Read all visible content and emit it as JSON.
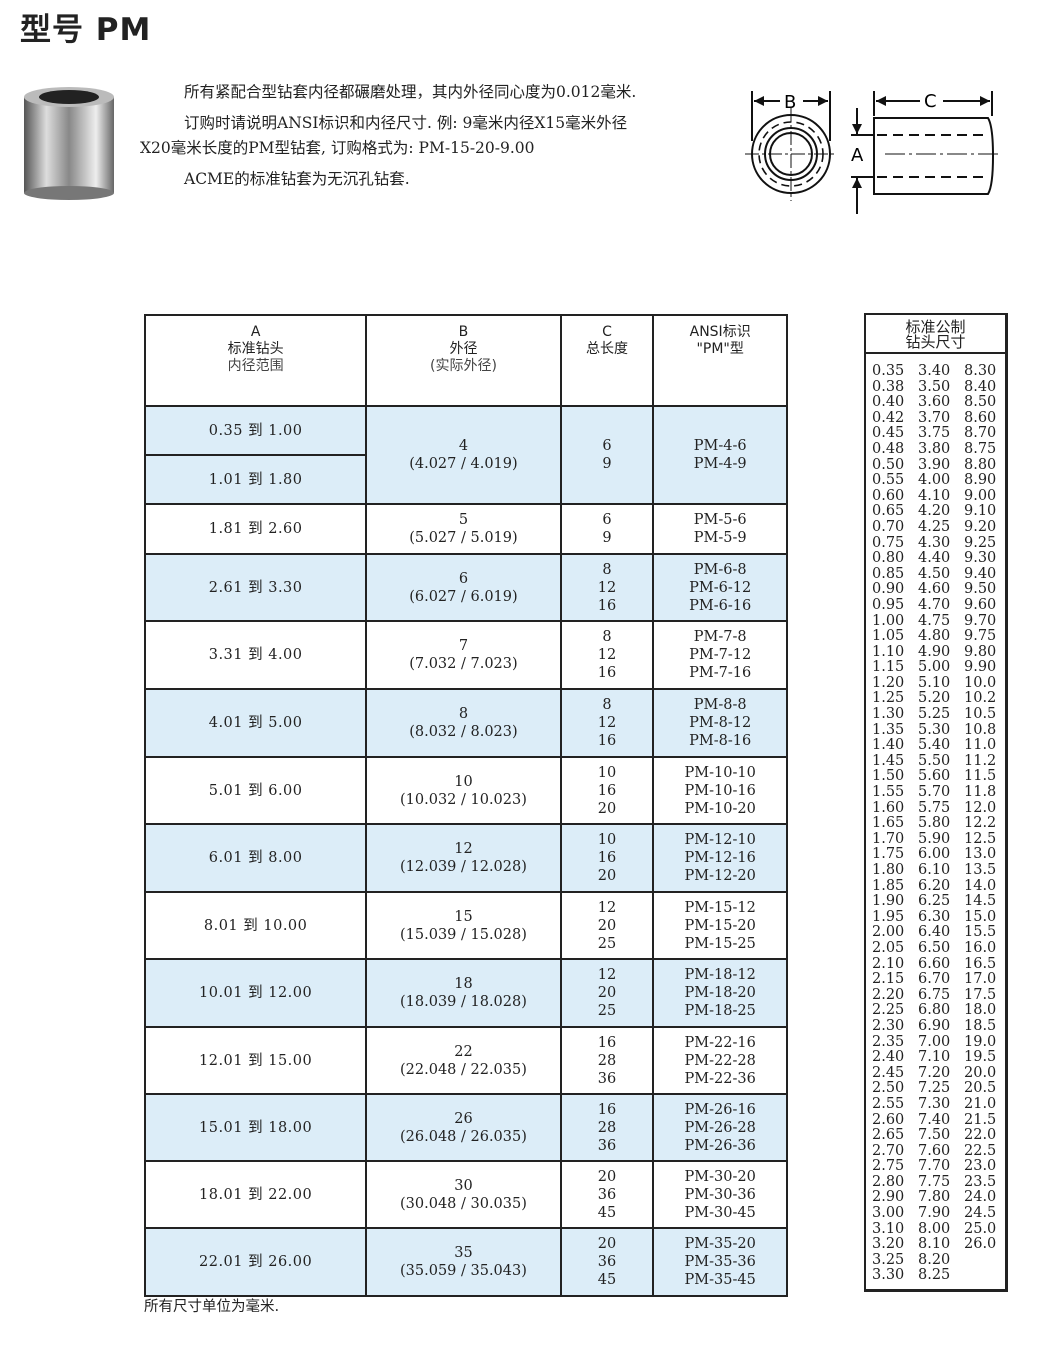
{
  "title": "型号 PM",
  "intro": {
    "p1": "所有紧配合型钻套内径都碾磨处理，其内外径同心度为0.012毫米.",
    "p2": "订购时请说明ANSI标识和内径尺寸. 例: 9毫米内径X15毫米外径X20毫米长度的PM型钻套, 订购格式为: PM-15-20-9.00",
    "p3": "ACME的标准钻套为无沉孔钻套."
  },
  "diagram": {
    "label_b": "B",
    "label_c": "C",
    "label_a": "A"
  },
  "table": {
    "headers": [
      {
        "l1": "A",
        "l2": "标准钻头",
        "l3": "内径范围"
      },
      {
        "l1": "B",
        "l2": "外径",
        "l3": "(实际外径)"
      },
      {
        "l1": "C",
        "l2": "总长度",
        "l3": ""
      },
      {
        "l1": "ANSI标识",
        "l2": "\"PM\"型",
        "l3": ""
      }
    ],
    "rows": [
      {
        "a": [
          "0.35 到 1.00",
          "1.01 到 1.80"
        ],
        "b": "4",
        "b_actual": "(4.027 / 4.019)",
        "c": [
          "6",
          "9"
        ],
        "ansi": [
          "PM-4-6",
          "PM-4-9"
        ]
      },
      {
        "a": [
          "1.81 到 2.60"
        ],
        "b": "5",
        "b_actual": "(5.027 / 5.019)",
        "c": [
          "6",
          "9"
        ],
        "ansi": [
          "PM-5-6",
          "PM-5-9"
        ]
      },
      {
        "a": [
          "2.61 到 3.30"
        ],
        "b": "6",
        "b_actual": "(6.027 / 6.019)",
        "c": [
          "8",
          "12",
          "16"
        ],
        "ansi": [
          "PM-6-8",
          "PM-6-12",
          "PM-6-16"
        ]
      },
      {
        "a": [
          "3.31 到 4.00"
        ],
        "b": "7",
        "b_actual": "(7.032 / 7.023)",
        "c": [
          "8",
          "12",
          "16"
        ],
        "ansi": [
          "PM-7-8",
          "PM-7-12",
          "PM-7-16"
        ]
      },
      {
        "a": [
          "4.01 到 5.00"
        ],
        "b": "8",
        "b_actual": "(8.032 / 8.023)",
        "c": [
          "8",
          "12",
          "16"
        ],
        "ansi": [
          "PM-8-8",
          "PM-8-12",
          "PM-8-16"
        ]
      },
      {
        "a": [
          "5.01 到 6.00"
        ],
        "b": "10",
        "b_actual": "(10.032 / 10.023)",
        "c": [
          "10",
          "16",
          "20"
        ],
        "ansi": [
          "PM-10-10",
          "PM-10-16",
          "PM-10-20"
        ]
      },
      {
        "a": [
          "6.01 到 8.00"
        ],
        "b": "12",
        "b_actual": "(12.039 / 12.028)",
        "c": [
          "10",
          "16",
          "20"
        ],
        "ansi": [
          "PM-12-10",
          "PM-12-16",
          "PM-12-20"
        ]
      },
      {
        "a": [
          "8.01 到 10.00"
        ],
        "b": "15",
        "b_actual": "(15.039 / 15.028)",
        "c": [
          "12",
          "20",
          "25"
        ],
        "ansi": [
          "PM-15-12",
          "PM-15-20",
          "PM-15-25"
        ]
      },
      {
        "a": [
          "10.01 到 12.00"
        ],
        "b": "18",
        "b_actual": "(18.039 / 18.028)",
        "c": [
          "12",
          "20",
          "25"
        ],
        "ansi": [
          "PM-18-12",
          "PM-18-20",
          "PM-18-25"
        ]
      },
      {
        "a": [
          "12.01 到 15.00"
        ],
        "b": "22",
        "b_actual": "(22.048 / 22.035)",
        "c": [
          "16",
          "28",
          "36"
        ],
        "ansi": [
          "PM-22-16",
          "PM-22-28",
          "PM-22-36"
        ]
      },
      {
        "a": [
          "15.01 到 18.00"
        ],
        "b": "26",
        "b_actual": "(26.048 / 26.035)",
        "c": [
          "16",
          "28",
          "36"
        ],
        "ansi": [
          "PM-26-16",
          "PM-26-28",
          "PM-26-36"
        ]
      },
      {
        "a": [
          "18.01 到 22.00"
        ],
        "b": "30",
        "b_actual": "(30.048 / 30.035)",
        "c": [
          "20",
          "36",
          "45"
        ],
        "ansi": [
          "PM-30-20",
          "PM-30-36",
          "PM-30-45"
        ]
      },
      {
        "a": [
          "22.01 到 26.00"
        ],
        "b": "35",
        "b_actual": "(35.059 / 35.043)",
        "c": [
          "20",
          "36",
          "45"
        ],
        "ansi": [
          "PM-35-20",
          "PM-35-36",
          "PM-35-45"
        ]
      }
    ],
    "row_color": "#dcedf8"
  },
  "footnote": "所有尺寸单位为毫米.",
  "drill": {
    "title1": "标准公制",
    "title2": "钻头尺寸",
    "columns": [
      [
        "0.35",
        "0.38",
        "0.40",
        "0.42",
        "0.45",
        "0.48",
        "0.50",
        "0.55",
        "0.60",
        "0.65",
        "0.70",
        "0.75",
        "0.80",
        "0.85",
        "0.90",
        "0.95",
        "1.00",
        "1.05",
        "1.10",
        "1.15",
        "1.20",
        "1.25",
        "1.30",
        "1.35",
        "1.40",
        "1.45",
        "1.50",
        "1.55",
        "1.60",
        "1.65",
        "1.70",
        "1.75",
        "1.80",
        "1.85",
        "1.90",
        "1.95",
        "2.00",
        "2.05",
        "2.10",
        "2.15",
        "2.20",
        "2.25",
        "2.30",
        "2.35",
        "2.40",
        "2.45",
        "2.50",
        "2.55",
        "2.60",
        "2.65",
        "2.70",
        "2.75",
        "2.80",
        "2.90",
        "3.00",
        "3.10",
        "3.20",
        "3.25",
        "3.30"
      ],
      [
        "3.40",
        "3.50",
        "3.60",
        "3.70",
        "3.75",
        "3.80",
        "3.90",
        "4.00",
        "4.10",
        "4.20",
        "4.25",
        "4.30",
        "4.40",
        "4.50",
        "4.60",
        "4.70",
        "4.75",
        "4.80",
        "4.90",
        "5.00",
        "5.10",
        "5.20",
        "5.25",
        "5.30",
        "5.40",
        "5.50",
        "5.60",
        "5.70",
        "5.75",
        "5.80",
        "5.90",
        "6.00",
        "6.10",
        "6.20",
        "6.25",
        "6.30",
        "6.40",
        "6.50",
        "6.60",
        "6.70",
        "6.75",
        "6.80",
        "6.90",
        "7.00",
        "7.10",
        "7.20",
        "7.25",
        "7.30",
        "7.40",
        "7.50",
        "7.60",
        "7.70",
        "7.75",
        "7.80",
        "7.90",
        "8.00",
        "8.10",
        "8.20",
        "8.25"
      ],
      [
        "8.30",
        "8.40",
        "8.50",
        "8.60",
        "8.70",
        "8.75",
        "8.80",
        "8.90",
        "9.00",
        "9.10",
        "9.20",
        "9.25",
        "9.30",
        "9.40",
        "9.50",
        "9.60",
        "9.70",
        "9.75",
        "9.80",
        "9.90",
        "10.0",
        "10.2",
        "10.5",
        "10.8",
        "11.0",
        "11.2",
        "11.5",
        "11.8",
        "12.0",
        "12.2",
        "12.5",
        "13.0",
        "13.5",
        "14.0",
        "14.5",
        "15.0",
        "15.5",
        "16.0",
        "16.5",
        "17.0",
        "17.5",
        "18.0",
        "18.5",
        "19.0",
        "19.5",
        "20.0",
        "20.5",
        "21.0",
        "21.5",
        "22.0",
        "22.5",
        "23.0",
        "23.5",
        "24.0",
        "24.5",
        "25.0",
        "26.0"
      ]
    ]
  }
}
